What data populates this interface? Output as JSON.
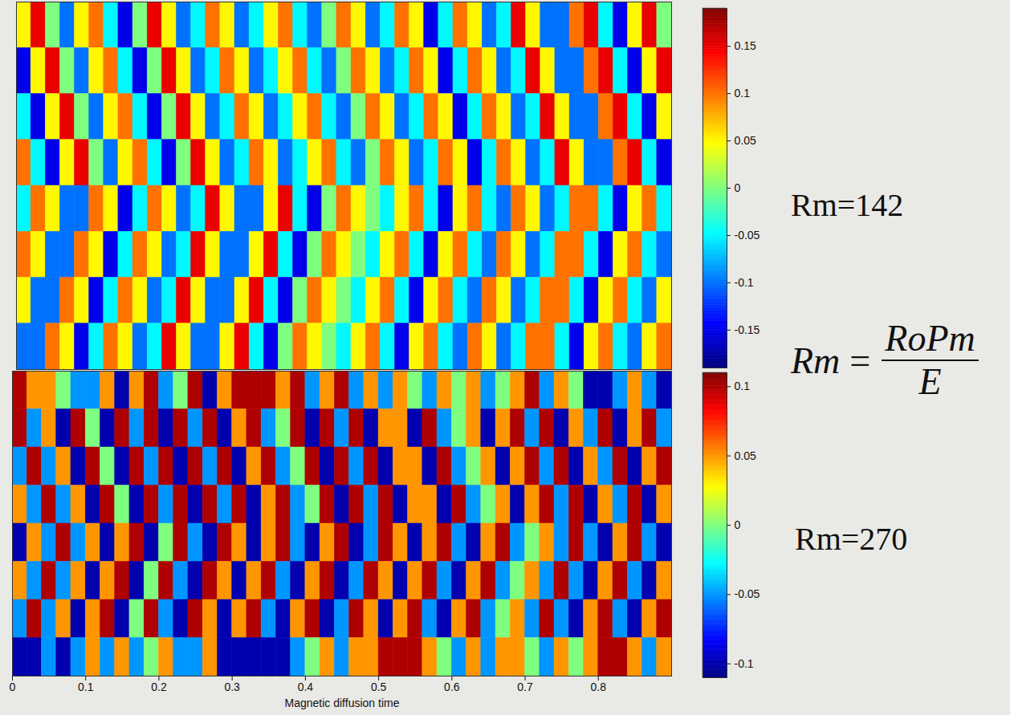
{
  "chart_data": [
    {
      "type": "heatmap",
      "label": "Rm=142",
      "annotation": {
        "lhs": "Rm",
        "numerator": "RoPm",
        "denominator": "E"
      },
      "tick_labels": false,
      "xlim": [
        0,
        0.9
      ],
      "x_edges": [
        0,
        0.02,
        0.04,
        0.06,
        0.08,
        0.1,
        0.12,
        0.14,
        0.16,
        0.18,
        0.2,
        0.22,
        0.24,
        0.26,
        0.28,
        0.3,
        0.32,
        0.34,
        0.36,
        0.38,
        0.4,
        0.42,
        0.44,
        0.46,
        0.48,
        0.5,
        0.52,
        0.54,
        0.56,
        0.58,
        0.6,
        0.62,
        0.64,
        0.66,
        0.68,
        0.7,
        0.72,
        0.74,
        0.76,
        0.78,
        0.8,
        0.82,
        0.84,
        0.86,
        0.88,
        0.9
      ],
      "clim": [
        -0.19,
        0.19
      ],
      "cticks": [
        -0.15,
        -0.1,
        -0.05,
        0,
        0.05,
        0.1,
        0.15
      ],
      "values": [
        [
          0.05,
          0.15,
          0,
          -0.1,
          0.05,
          0.1,
          -0.05,
          -0.15,
          0,
          0.15,
          0.05,
          -0.1,
          -0.05,
          0.1,
          0.05,
          -0.1,
          -0.05,
          0.05,
          0.1,
          -0.05,
          -0.1,
          0,
          0.1,
          0.05,
          -0.1,
          -0.05,
          0.1,
          0.05,
          -0.15,
          -0.05,
          0.1,
          0.05,
          -0.1,
          -0.05,
          0.15,
          0.05,
          -0.1,
          -0.1,
          0.1,
          0.15,
          -0.05,
          -0.15,
          0.05,
          0.15,
          0
        ],
        [
          -0.15,
          0.05,
          0.15,
          0,
          -0.1,
          0.05,
          0.1,
          -0.05,
          -0.15,
          0,
          0.15,
          0.05,
          -0.1,
          -0.05,
          0.1,
          0.05,
          -0.1,
          -0.05,
          0.05,
          0.1,
          -0.05,
          -0.1,
          0,
          0.1,
          0.05,
          -0.1,
          -0.05,
          0.1,
          0.05,
          -0.15,
          -0.05,
          0.1,
          0.05,
          -0.1,
          -0.05,
          0.15,
          0.05,
          -0.1,
          -0.1,
          0.1,
          0.15,
          -0.05,
          -0.15,
          0.05,
          0.15
        ],
        [
          -0.05,
          -0.15,
          0.05,
          0.15,
          0,
          -0.1,
          0.05,
          0.1,
          -0.05,
          -0.15,
          0,
          0.15,
          0.05,
          -0.1,
          -0.05,
          0.1,
          0.05,
          -0.1,
          -0.05,
          0.05,
          0.1,
          -0.05,
          -0.1,
          0,
          0.1,
          0.05,
          -0.1,
          -0.05,
          0.1,
          0.05,
          -0.15,
          -0.05,
          0.1,
          0.05,
          -0.1,
          -0.05,
          0.15,
          0.05,
          -0.1,
          -0.1,
          0.1,
          0.15,
          -0.05,
          -0.15,
          0.05
        ],
        [
          0.1,
          -0.05,
          -0.15,
          0.05,
          0.15,
          0,
          -0.1,
          0.05,
          0.1,
          -0.05,
          -0.15,
          0,
          0.15,
          0.05,
          -0.1,
          -0.05,
          0.1,
          0.05,
          -0.1,
          -0.05,
          0.05,
          0.1,
          -0.05,
          -0.1,
          0,
          0.1,
          0.05,
          -0.1,
          -0.05,
          0.1,
          0.05,
          -0.15,
          -0.05,
          0.1,
          0.05,
          -0.1,
          -0.05,
          0.15,
          0.05,
          -0.1,
          -0.1,
          0.1,
          0.15,
          -0.05,
          -0.15
        ],
        [
          -0.05,
          0.1,
          0.05,
          -0.1,
          -0.1,
          0.1,
          0.05,
          -0.15,
          -0.05,
          0.1,
          0.05,
          -0.1,
          -0.05,
          0.15,
          0.05,
          -0.1,
          -0.1,
          0.05,
          0.15,
          -0.05,
          -0.15,
          0,
          0.1,
          0.05,
          0,
          -0.05,
          0.05,
          0.1,
          -0.05,
          -0.15,
          0.05,
          0.1,
          -0.05,
          -0.1,
          0.1,
          0.05,
          -0.1,
          -0.05,
          0.1,
          0.1,
          -0.05,
          -0.15,
          0.05,
          0.1,
          -0.05
        ],
        [
          0.1,
          0.05,
          -0.1,
          -0.1,
          0.1,
          0.05,
          -0.15,
          -0.05,
          0.1,
          0.05,
          -0.1,
          -0.05,
          0.15,
          0.05,
          -0.1,
          -0.1,
          0.05,
          0.15,
          -0.05,
          -0.15,
          0,
          0.1,
          0.05,
          0,
          -0.05,
          0.05,
          0.1,
          -0.05,
          -0.15,
          0.05,
          0.1,
          -0.05,
          -0.1,
          0.1,
          0.05,
          -0.1,
          -0.05,
          0.1,
          0.1,
          -0.05,
          -0.15,
          0.05,
          0.1,
          -0.05,
          -0.1
        ],
        [
          0.05,
          -0.1,
          -0.1,
          0.1,
          0.05,
          -0.15,
          -0.05,
          0.1,
          0.05,
          -0.1,
          -0.05,
          0.15,
          0.05,
          -0.1,
          -0.1,
          0.05,
          0.15,
          -0.05,
          -0.15,
          0,
          0.1,
          0.05,
          0,
          -0.05,
          0.05,
          0.1,
          -0.05,
          -0.15,
          0.05,
          0.1,
          -0.05,
          -0.1,
          0.1,
          0.05,
          -0.1,
          -0.05,
          0.1,
          0.1,
          -0.05,
          -0.15,
          0.05,
          0.1,
          -0.05,
          -0.1,
          0.05
        ],
        [
          -0.1,
          -0.1,
          0.1,
          0.05,
          -0.15,
          -0.05,
          0.1,
          0.05,
          -0.1,
          -0.05,
          0.15,
          0.05,
          -0.1,
          -0.1,
          0.05,
          0.15,
          -0.05,
          -0.15,
          0,
          0.1,
          0.05,
          0,
          -0.05,
          0.05,
          0.1,
          -0.05,
          -0.15,
          0.05,
          0.1,
          -0.05,
          -0.1,
          0.1,
          0.05,
          -0.1,
          -0.05,
          0.1,
          0.1,
          -0.05,
          -0.15,
          0.05,
          0.1,
          -0.05,
          -0.1,
          0.05,
          0.1
        ]
      ]
    },
    {
      "type": "heatmap",
      "label": "Rm=270",
      "tick_labels": "x",
      "xlabel": "Magnetic diffusion time",
      "xlim": [
        0,
        0.9
      ],
      "xticks": [
        0,
        0.1,
        0.2,
        0.3,
        0.4,
        0.5,
        0.6,
        0.7,
        0.8
      ],
      "x_edges": [
        0,
        0.02,
        0.04,
        0.06,
        0.08,
        0.1,
        0.12,
        0.14,
        0.16,
        0.18,
        0.2,
        0.22,
        0.24,
        0.26,
        0.28,
        0.3,
        0.32,
        0.34,
        0.36,
        0.38,
        0.4,
        0.42,
        0.44,
        0.46,
        0.48,
        0.5,
        0.52,
        0.54,
        0.56,
        0.58,
        0.6,
        0.62,
        0.64,
        0.66,
        0.68,
        0.7,
        0.72,
        0.74,
        0.76,
        0.78,
        0.8,
        0.82,
        0.84,
        0.86,
        0.88,
        0.9
      ],
      "clim": [
        -0.11,
        0.11
      ],
      "cticks": [
        -0.1,
        -0.05,
        0,
        0.05,
        0.1
      ],
      "values": [
        [
          0.1,
          0.05,
          0.05,
          0,
          -0.05,
          -0.05,
          0.05,
          -0.1,
          0.05,
          0.1,
          -0.05,
          0,
          0.1,
          -0.1,
          0.05,
          0.1,
          0.1,
          0.1,
          0.05,
          0.1,
          -0.05,
          0.05,
          0.1,
          -0.05,
          0.05,
          -0.05,
          0.05,
          0,
          -0.05,
          0.05,
          0,
          0.05,
          -0.05,
          0,
          0.05,
          0.1,
          -0.05,
          0.05,
          0,
          -0.1,
          -0.1,
          -0.05,
          0.05,
          -0.05,
          -0.1
        ],
        [
          0.1,
          -0.05,
          0.05,
          -0.1,
          0.1,
          0,
          -0.1,
          0.1,
          -0.05,
          0.1,
          -0.1,
          0.1,
          -0.05,
          0.1,
          -0.1,
          0.05,
          0.1,
          -0.05,
          0,
          0.1,
          -0.1,
          0.1,
          -0.05,
          0.1,
          -0.1,
          0.05,
          0.05,
          -0.1,
          0.1,
          -0.05,
          0,
          0.05,
          -0.1,
          0.05,
          0.1,
          -0.05,
          0.1,
          -0.1,
          0.05,
          -0.05,
          0.1,
          -0.1,
          0.05,
          0.1,
          -0.05
        ],
        [
          -0.05,
          0.1,
          -0.05,
          0.05,
          -0.1,
          0.1,
          0,
          -0.1,
          0.1,
          -0.05,
          0.1,
          -0.1,
          0.1,
          -0.05,
          0.1,
          -0.1,
          0.05,
          0.1,
          -0.05,
          0,
          0.1,
          -0.1,
          0.1,
          -0.05,
          0.1,
          -0.1,
          0.05,
          0.05,
          -0.1,
          0.1,
          -0.05,
          0,
          0.05,
          -0.1,
          0.05,
          0.1,
          -0.05,
          0.1,
          -0.1,
          0.05,
          -0.05,
          0.1,
          -0.1,
          0.05,
          0.1
        ],
        [
          0.05,
          -0.05,
          0.1,
          -0.05,
          0.05,
          -0.1,
          0.1,
          0,
          -0.1,
          0.1,
          -0.05,
          0.1,
          -0.1,
          0.1,
          -0.05,
          0.1,
          -0.1,
          0.05,
          0.1,
          -0.05,
          0,
          0.1,
          -0.1,
          0.1,
          -0.05,
          0.1,
          -0.1,
          0.05,
          0.05,
          -0.1,
          0.1,
          -0.05,
          0,
          0.05,
          -0.1,
          0.05,
          0.1,
          -0.05,
          0.1,
          -0.1,
          0.05,
          -0.05,
          0.1,
          -0.1,
          0.05
        ],
        [
          -0.1,
          0.05,
          -0.05,
          0.1,
          -0.05,
          0.05,
          -0.1,
          0.05,
          0.1,
          -0.1,
          0,
          0.1,
          -0.05,
          -0.1,
          0.1,
          0.05,
          -0.1,
          0.05,
          0.1,
          -0.05,
          -0.1,
          0.05,
          0.1,
          -0.1,
          -0.05,
          0.1,
          0.05,
          -0.1,
          0.05,
          0.1,
          -0.05,
          -0.1,
          0.05,
          0.1,
          -0.05,
          0,
          0.05,
          -0.05,
          0.1,
          -0.05,
          -0.1,
          0.05,
          0.1,
          -0.05,
          -0.1
        ],
        [
          0.05,
          -0.05,
          0.1,
          -0.05,
          0.05,
          -0.1,
          0.05,
          0.1,
          -0.1,
          0,
          0.1,
          -0.05,
          -0.1,
          0.1,
          0.05,
          -0.1,
          0.05,
          0.1,
          -0.05,
          -0.1,
          0.05,
          0.1,
          -0.1,
          -0.05,
          0.1,
          0.05,
          -0.1,
          0.05,
          0.1,
          -0.05,
          -0.1,
          0.05,
          0.1,
          -0.05,
          0,
          0.05,
          -0.05,
          0.1,
          -0.05,
          -0.1,
          0.05,
          0.1,
          -0.05,
          -0.1,
          0.05
        ],
        [
          -0.05,
          0.1,
          -0.05,
          0.05,
          -0.1,
          0.05,
          0.1,
          -0.1,
          0,
          0.1,
          -0.05,
          -0.1,
          0.1,
          0.05,
          -0.1,
          0.05,
          0.1,
          -0.05,
          -0.1,
          0.05,
          0.1,
          -0.1,
          -0.05,
          0.1,
          0.05,
          -0.1,
          0.05,
          0.1,
          -0.05,
          -0.1,
          0.05,
          0.1,
          -0.05,
          0,
          0.05,
          -0.05,
          0.1,
          -0.05,
          -0.1,
          0.05,
          0.1,
          -0.05,
          -0.1,
          0.05,
          0.1
        ],
        [
          -0.1,
          -0.1,
          -0.05,
          -0.1,
          -0.05,
          0.05,
          -0.05,
          0.05,
          -0.05,
          0,
          0.05,
          -0.05,
          -0.05,
          0.05,
          -0.1,
          -0.1,
          -0.1,
          -0.1,
          -0.1,
          -0.05,
          0,
          0.05,
          -0.05,
          0.05,
          0.05,
          0.1,
          0.1,
          0.1,
          0.05,
          0,
          -0.05,
          0.05,
          -0.05,
          0.05,
          0.05,
          0,
          -0.05,
          0.05,
          0,
          0.05,
          0.1,
          0.1,
          0.05,
          -0.05,
          0.05
        ]
      ]
    }
  ]
}
